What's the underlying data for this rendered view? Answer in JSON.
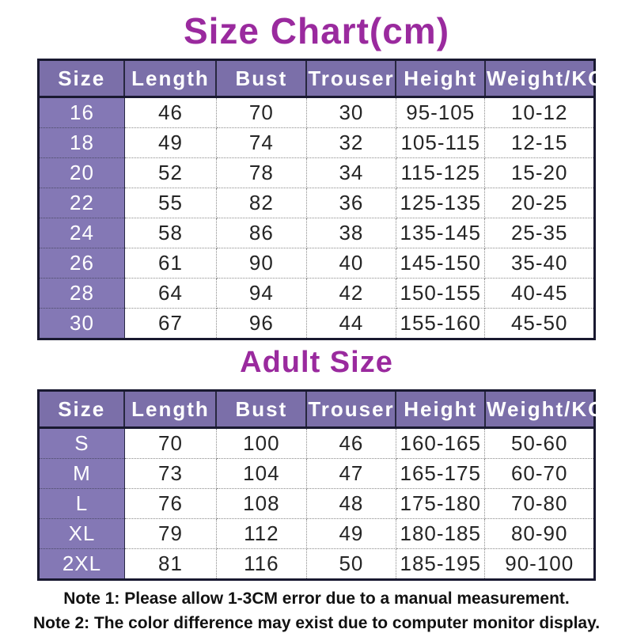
{
  "page": {
    "title": "Size Chart(cm)",
    "adult_title": "Adult Size",
    "note1": "Note 1: Please allow 1-3CM error due to a manual measurement.",
    "note2": "Note 2: The color difference may exist due to computer monitor display."
  },
  "colors": {
    "title_text": "#9a2a9e",
    "header_bg": "#7b6fa9",
    "size_column_bg": "#8478b5",
    "table_border": "#191930",
    "header_text": "#ffffff",
    "body_text": "#252525"
  },
  "chart_data": [
    {
      "type": "table",
      "title": "Size Chart(cm)",
      "headers": [
        "Size",
        "Length",
        "Bust",
        "Trouser",
        "Height",
        "Weight/KG"
      ],
      "rows": [
        [
          "16",
          "46",
          "70",
          "30",
          "95-105",
          "10-12"
        ],
        [
          "18",
          "49",
          "74",
          "32",
          "105-115",
          "12-15"
        ],
        [
          "20",
          "52",
          "78",
          "34",
          "115-125",
          "15-20"
        ],
        [
          "22",
          "55",
          "82",
          "36",
          "125-135",
          "20-25"
        ],
        [
          "24",
          "58",
          "86",
          "38",
          "135-145",
          "25-35"
        ],
        [
          "26",
          "61",
          "90",
          "40",
          "145-150",
          "35-40"
        ],
        [
          "28",
          "64",
          "94",
          "42",
          "150-155",
          "40-45"
        ],
        [
          "30",
          "67",
          "96",
          "44",
          "155-160",
          "45-50"
        ]
      ]
    },
    {
      "type": "table",
      "title": "Adult Size",
      "headers": [
        "Size",
        "Length",
        "Bust",
        "Trouser",
        "Height",
        "Weight/KG"
      ],
      "rows": [
        [
          "S",
          "70",
          "100",
          "46",
          "160-165",
          "50-60"
        ],
        [
          "M",
          "73",
          "104",
          "47",
          "165-175",
          "60-70"
        ],
        [
          "L",
          "76",
          "108",
          "48",
          "175-180",
          "70-80"
        ],
        [
          "XL",
          "79",
          "112",
          "49",
          "180-185",
          "80-90"
        ],
        [
          "2XL",
          "81",
          "116",
          "50",
          "185-195",
          "90-100"
        ]
      ]
    }
  ]
}
